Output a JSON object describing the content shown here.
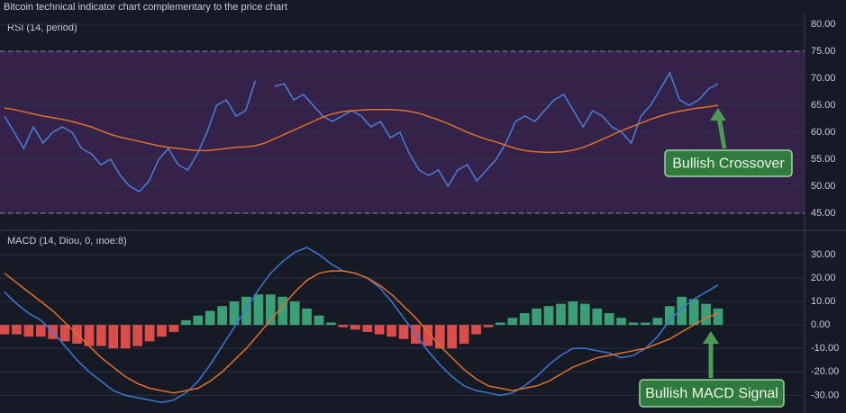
{
  "chart_data": [
    {
      "type": "line",
      "title": "Bitcoin technical indicator chart complementary to the price chart",
      "panel_label": "RSI (14, period)",
      "ylim": [
        42,
        82
      ],
      "yticks": [
        {
          "value": 80,
          "label": "80.00"
        },
        {
          "value": 75,
          "label": "75.00"
        },
        {
          "value": 70,
          "label": "70.00"
        },
        {
          "value": 65,
          "label": "65.00"
        },
        {
          "value": 60,
          "label": "60.00"
        },
        {
          "value": 55,
          "label": "55.00"
        },
        {
          "value": 50,
          "label": "50.00"
        },
        {
          "value": 45,
          "label": "45.00"
        }
      ],
      "band": [
        45,
        75
      ],
      "band_color": "#3a2452",
      "grid": true,
      "series": [
        {
          "color": "#4a7fd8",
          "values": [
            63,
            60,
            57,
            61,
            58,
            60,
            61,
            60,
            57,
            56,
            54,
            55,
            52,
            50,
            49,
            51,
            55,
            57,
            54,
            53,
            56,
            60,
            65,
            66,
            63,
            64,
            69.5,
            null,
            68.5,
            69,
            66,
            67,
            65,
            63,
            62,
            63,
            64,
            63,
            61,
            62,
            59,
            60,
            56,
            53,
            52,
            53,
            50,
            53,
            54,
            51,
            53,
            55,
            58,
            62,
            63,
            62,
            64,
            66,
            67,
            64,
            61,
            64,
            63,
            61,
            60,
            58,
            63,
            65,
            68,
            71,
            66,
            65,
            66,
            68,
            69
          ]
        },
        {
          "color": "#e0702a",
          "values": [
            64.5,
            64.2,
            63.8,
            63.4,
            63,
            62.7,
            62.4,
            62,
            61.5,
            61,
            60.3,
            59.6,
            59.1,
            58.7,
            58.3,
            57.9,
            57.5,
            57.2,
            57,
            56.8,
            56.6,
            56.6,
            56.8,
            57,
            57.2,
            57.3,
            57.5,
            58,
            58.8,
            59.6,
            60.4,
            61.2,
            62,
            62.8,
            63.4,
            63.8,
            64,
            64.1,
            64.2,
            64.2,
            64.2,
            64.1,
            63.9,
            63.5,
            62.9,
            62.3,
            61.6,
            60.8,
            60,
            59.3,
            58.7,
            58.2,
            57.6,
            57,
            56.6,
            56.4,
            56.3,
            56.3,
            56.4,
            56.7,
            57.2,
            57.9,
            58.7,
            59.5,
            60.3,
            61,
            61.7,
            62.4,
            63,
            63.5,
            63.9,
            64.2,
            64.5,
            64.7,
            65
          ]
        }
      ],
      "annotations": [
        {
          "text": "Bullish Crossover"
        }
      ]
    },
    {
      "type": "line",
      "panel_label": "MACD (14, Diou, 0, ınoe:8)",
      "ylim": [
        -36,
        38
      ],
      "yticks": [
        {
          "value": 30,
          "label": "30.00"
        },
        {
          "value": 20,
          "label": "20.00"
        },
        {
          "value": 10,
          "label": "10.00"
        },
        {
          "value": 0,
          "label": "0.00"
        },
        {
          "value": -10,
          "label": "-10.00"
        },
        {
          "value": -20,
          "label": "-20.00"
        },
        {
          "value": -30,
          "label": "-30.00"
        }
      ],
      "grid": true,
      "histogram": {
        "type": "bar",
        "positive_color": "#3fae7f",
        "negative_color": "#ef5350",
        "values": [
          -4,
          -4,
          -5,
          -5,
          -6,
          -7,
          -8,
          -9,
          -9,
          -10,
          -10,
          -9,
          -7,
          -5,
          -3,
          2,
          4,
          6,
          8,
          10,
          12,
          13,
          13,
          12,
          10,
          7,
          4,
          1,
          -1,
          -2,
          -3,
          -4,
          -5,
          -6,
          -8,
          -9,
          -10,
          -10,
          -8,
          -4,
          -1,
          1,
          3,
          5,
          7,
          8,
          9,
          10,
          9,
          7,
          5,
          3,
          1,
          1,
          3,
          8,
          12,
          11,
          9,
          7
        ]
      },
      "series": [
        {
          "color": "#3d78d8",
          "values": [
            14,
            9,
            5,
            2,
            -3,
            -9,
            -15,
            -20,
            -24,
            -28,
            -30,
            -31,
            -32,
            -33,
            -32,
            -29,
            -24,
            -17,
            -9,
            -1,
            7,
            15,
            22,
            27,
            31,
            33,
            30,
            26,
            23,
            22,
            20,
            16,
            10,
            3,
            -4,
            -11,
            -17,
            -22,
            -26,
            -28,
            -29,
            -30,
            -29,
            -26,
            -22,
            -17,
            -13,
            -10,
            -10,
            -11,
            -12,
            -14,
            -13,
            -10,
            -5,
            2,
            7,
            11,
            14,
            17
          ]
        },
        {
          "color": "#e0702a",
          "values": [
            22,
            18,
            14,
            10,
            6,
            1,
            -4,
            -9,
            -14,
            -18,
            -22,
            -25,
            -27,
            -28,
            -29,
            -28,
            -27,
            -24,
            -20,
            -15,
            -10,
            -4,
            2,
            8,
            14,
            19,
            22,
            23,
            23,
            22,
            20,
            17,
            13,
            8,
            3,
            -3,
            -9,
            -14,
            -19,
            -23,
            -26,
            -27,
            -28,
            -27,
            -26,
            -24,
            -21,
            -18,
            -16,
            -14,
            -13,
            -12,
            -11,
            -10,
            -8,
            -6,
            -3,
            0,
            3,
            5
          ]
        }
      ],
      "annotations": [
        {
          "text": "Bullish MACD Signal"
        }
      ]
    }
  ]
}
